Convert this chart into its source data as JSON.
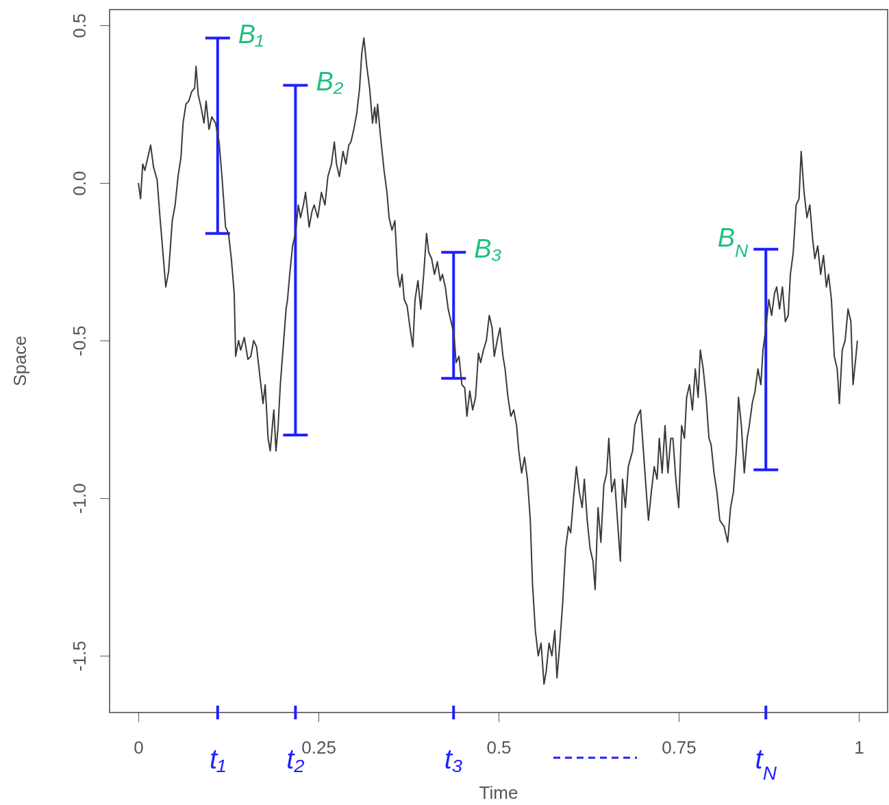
{
  "chart_data": {
    "type": "line",
    "xlabel": "Time",
    "ylabel": "Space",
    "xlim": [
      -0.04,
      1.04
    ],
    "ylim": [
      -1.68,
      0.55
    ],
    "xticks": [
      0,
      0.25,
      0.5,
      0.75,
      1
    ],
    "yticks": [
      {
        "value": -1.5,
        "label": "-1.5"
      },
      {
        "value": -1,
        "label": "-1.0"
      },
      {
        "value": -0.5,
        "label": "-0.5"
      },
      {
        "value": 0,
        "label": "0.0"
      },
      {
        "value": 0.5,
        "label": "0.5"
      }
    ],
    "grid": false,
    "series": [
      {
        "color": "#3a3a3a",
        "x": [
          0,
          0.003,
          0.006,
          0.009,
          0.013,
          0.017,
          0.021,
          0.026,
          0.03,
          0.034,
          0.038,
          0.042,
          0.047,
          0.051,
          0.055,
          0.059,
          0.062,
          0.066,
          0.07,
          0.074,
          0.078,
          0.08,
          0.083,
          0.087,
          0.091,
          0.094,
          0.098,
          0.102,
          0.107,
          0.112,
          0.116,
          0.121,
          0.125,
          0.129,
          0.133,
          0.135,
          0.139,
          0.142,
          0.147,
          0.152,
          0.156,
          0.16,
          0.164,
          0.169,
          0.173,
          0.176,
          0.18,
          0.183,
          0.186,
          0.188,
          0.191,
          0.194,
          0.197,
          0.2,
          0.205,
          0.207,
          0.21,
          0.214,
          0.218,
          0.222,
          0.225,
          0.229,
          0.232,
          0.237,
          0.241,
          0.244,
          0.249,
          0.254,
          0.259,
          0.263,
          0.268,
          0.272,
          0.275,
          0.279,
          0.284,
          0.288,
          0.292,
          0.295,
          0.299,
          0.303,
          0.307,
          0.31,
          0.313,
          0.317,
          0.321,
          0.325,
          0.328,
          0.33,
          0.332,
          0.336,
          0.341,
          0.345,
          0.348,
          0.352,
          0.356,
          0.36,
          0.363,
          0.366,
          0.369,
          0.373,
          0.377,
          0.381,
          0.384,
          0.388,
          0.392,
          0.396,
          0.4,
          0.403,
          0.407,
          0.411,
          0.415,
          0.419,
          0.422,
          0.426,
          0.43,
          0.434,
          0.438,
          0.441,
          0.445,
          0.449,
          0.453,
          0.456,
          0.46,
          0.464,
          0.468,
          0.472,
          0.475,
          0.479,
          0.483,
          0.487,
          0.491,
          0.494,
          0.498,
          0.502,
          0.506,
          0.509,
          0.513,
          0.517,
          0.521,
          0.525,
          0.528,
          0.532,
          0.536,
          0.54,
          0.544,
          0.547,
          0.551,
          0.555,
          0.559,
          0.563,
          0.566,
          0.57,
          0.574,
          0.578,
          0.581,
          0.585,
          0.589,
          0.593,
          0.597,
          0.6,
          0.604,
          0.608,
          0.612,
          0.616,
          0.619,
          0.623,
          0.627,
          0.631,
          0.634,
          0.638,
          0.642,
          0.646,
          0.65,
          0.653,
          0.657,
          0.661,
          0.665,
          0.669,
          0.672,
          0.676,
          0.68,
          0.686,
          0.689,
          0.693,
          0.697,
          0.701,
          0.705,
          0.708,
          0.712,
          0.716,
          0.72,
          0.723,
          0.727,
          0.731,
          0.735,
          0.739,
          0.742,
          0.746,
          0.75,
          0.754,
          0.758,
          0.761,
          0.765,
          0.769,
          0.773,
          0.777,
          0.78,
          0.784,
          0.788,
          0.792,
          0.795,
          0.799,
          0.803,
          0.807,
          0.813,
          0.818,
          0.822,
          0.826,
          0.83,
          0.833,
          0.837,
          0.841,
          0.845,
          0.848,
          0.852,
          0.856,
          0.86,
          0.864,
          0.867,
          0.871,
          0.875,
          0.879,
          0.883,
          0.886,
          0.89,
          0.894,
          0.898,
          0.902,
          0.905,
          0.909,
          0.913,
          0.917,
          0.92,
          0.924,
          0.928,
          0.932,
          0.936,
          0.939,
          0.943,
          0.947,
          0.951,
          0.955,
          0.958,
          0.962,
          0.966,
          0.97,
          0.973,
          0.977,
          0.981,
          0.985,
          0.989,
          0.992,
          0.996,
          0.998
        ],
        "values": [
          0,
          -0.05,
          0.06,
          0.04,
          0.08,
          0.12,
          0.05,
          0.01,
          -0.11,
          -0.22,
          -0.33,
          -0.28,
          -0.12,
          -0.07,
          0.02,
          0.08,
          0.19,
          0.25,
          0.26,
          0.29,
          0.3,
          0.37,
          0.28,
          0.24,
          0.19,
          0.26,
          0.17,
          0.21,
          0.19,
          0.13,
          0.02,
          -0.14,
          -0.16,
          -0.24,
          -0.35,
          -0.55,
          -0.5,
          -0.53,
          -0.49,
          -0.56,
          -0.55,
          -0.5,
          -0.52,
          -0.62,
          -0.7,
          -0.64,
          -0.81,
          -0.85,
          -0.77,
          -0.72,
          -0.85,
          -0.77,
          -0.64,
          -0.55,
          -0.4,
          -0.37,
          -0.29,
          -0.2,
          -0.16,
          -0.07,
          -0.11,
          -0.07,
          -0.03,
          -0.14,
          -0.09,
          -0.07,
          -0.11,
          -0.03,
          -0.07,
          0.02,
          0.06,
          0.13,
          0.06,
          0.02,
          0.1,
          0.06,
          0.12,
          0.13,
          0.17,
          0.22,
          0.3,
          0.41,
          0.46,
          0.37,
          0.3,
          0.19,
          0.24,
          0.19,
          0.25,
          0.15,
          0.04,
          -0.03,
          -0.11,
          -0.15,
          -0.12,
          -0.29,
          -0.33,
          -0.29,
          -0.37,
          -0.39,
          -0.46,
          -0.52,
          -0.37,
          -0.31,
          -0.4,
          -0.29,
          -0.16,
          -0.22,
          -0.24,
          -0.29,
          -0.25,
          -0.31,
          -0.29,
          -0.33,
          -0.4,
          -0.44,
          -0.48,
          -0.57,
          -0.55,
          -0.64,
          -0.65,
          -0.74,
          -0.66,
          -0.72,
          -0.68,
          -0.54,
          -0.57,
          -0.53,
          -0.5,
          -0.42,
          -0.46,
          -0.55,
          -0.5,
          -0.46,
          -0.55,
          -0.59,
          -0.68,
          -0.74,
          -0.72,
          -0.77,
          -0.85,
          -0.92,
          -0.87,
          -0.94,
          -1.07,
          -1.27,
          -1.42,
          -1.5,
          -1.46,
          -1.59,
          -1.55,
          -1.46,
          -1.5,
          -1.42,
          -1.57,
          -1.46,
          -1.33,
          -1.16,
          -1.09,
          -1.11,
          -1.0,
          -0.9,
          -0.98,
          -1.03,
          -0.94,
          -1.07,
          -1.16,
          -1.2,
          -1.29,
          -1.03,
          -1.14,
          -0.96,
          -0.92,
          -0.81,
          -0.98,
          -0.94,
          -1.07,
          -1.2,
          -0.94,
          -1.03,
          -0.9,
          -0.85,
          -0.77,
          -0.74,
          -0.72,
          -0.85,
          -0.98,
          -1.07,
          -0.98,
          -0.9,
          -0.94,
          -0.81,
          -0.92,
          -0.77,
          -0.92,
          -0.81,
          -0.81,
          -0.94,
          -1.03,
          -0.77,
          -0.81,
          -0.68,
          -0.64,
          -0.72,
          -0.59,
          -0.68,
          -0.53,
          -0.59,
          -0.68,
          -0.81,
          -0.83,
          -0.92,
          -0.98,
          -1.07,
          -1.09,
          -1.14,
          -1.03,
          -0.98,
          -0.85,
          -0.68,
          -0.77,
          -0.92,
          -0.81,
          -0.77,
          -0.7,
          -0.66,
          -0.59,
          -0.64,
          -0.53,
          -0.46,
          -0.37,
          -0.42,
          -0.35,
          -0.33,
          -0.4,
          -0.33,
          -0.44,
          -0.42,
          -0.29,
          -0.22,
          -0.07,
          -0.05,
          0.1,
          -0.03,
          -0.11,
          -0.07,
          -0.18,
          -0.24,
          -0.2,
          -0.29,
          -0.23,
          -0.33,
          -0.29,
          -0.37,
          -0.55,
          -0.59,
          -0.7,
          -0.53,
          -0.5,
          -0.4,
          -0.44,
          -0.64,
          -0.55,
          -0.5
        ]
      },
      {
        "type": "bar",
        "color": "#1f1fff",
        "x": [
          0.11,
          0.218,
          0.4375,
          0.871
        ],
        "base": [
          -0.16,
          -0.8,
          -0.62,
          -0.91
        ],
        "values": [
          0.62,
          1.11,
          0.4,
          0.7
        ]
      }
    ],
    "annotations": [
      {
        "text": "B₁",
        "x": 0.11,
        "y": 0.46
      },
      {
        "text": "B₂",
        "x": 0.218,
        "y": 0.31
      },
      {
        "text": "B₃",
        "x": 0.4375,
        "y": -0.22
      },
      {
        "text": "B$_{N}$",
        "x": 0.871,
        "y": -0.21
      },
      {
        "text": "t₁",
        "x": 0.11
      },
      {
        "text": "t₂",
        "x": 0.218
      },
      {
        "text": "t₃",
        "x": 0.4375
      },
      {
        "text": "t$_{N}$",
        "x": 0.871
      }
    ]
  }
}
